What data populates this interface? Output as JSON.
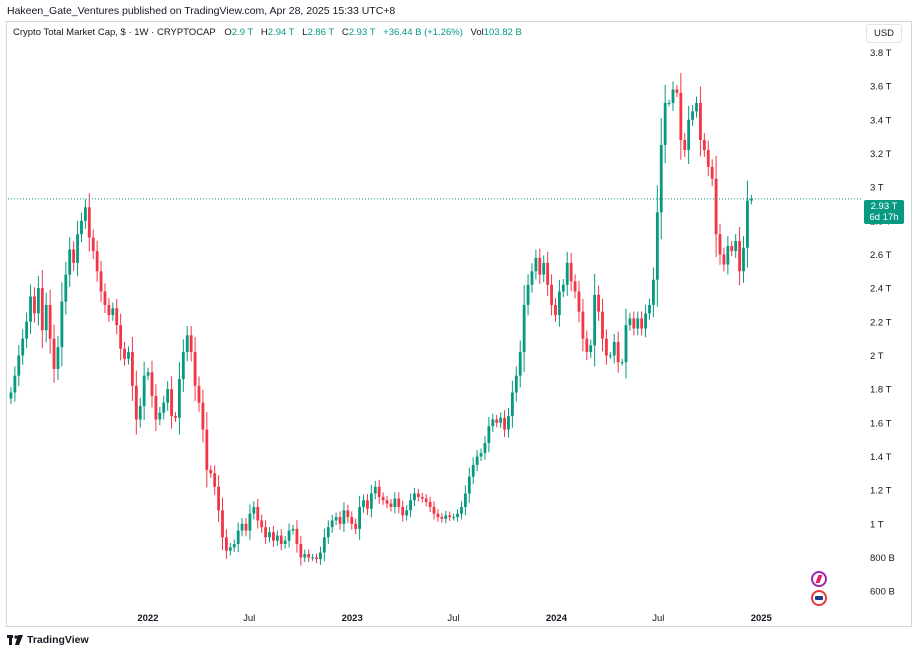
{
  "header": {
    "published_line": "Hakeen_Gate_Ventures published on TradingView.com, Apr 28, 2025 15:33 UTC+8"
  },
  "legend": {
    "symbol": "Crypto Total Market Cap, $ · 1W · CRYPTOCAP",
    "o_label": "O",
    "o_value": "2.9 T",
    "h_label": "H",
    "h_value": "2.94 T",
    "l_label": "L",
    "l_value": "2.86 T",
    "c_label": "C",
    "c_value": "2.93 T",
    "change": "+36.44 B (+1.26%)",
    "vol_label": "Vol",
    "vol_value": "103.82 B"
  },
  "currency_button": "USD",
  "price_tag": {
    "price": "2.93 T",
    "countdown": "6d 17h"
  },
  "footer": {
    "brand": "TradingView"
  },
  "icons": [
    "tradingview-logo-icon",
    "lightning-icon",
    "us-flag-icon"
  ],
  "colors": {
    "up": "#089981",
    "down": "#f23645",
    "accent": "#089981"
  },
  "chart_data": {
    "type": "candlestick",
    "title": "Crypto Total Market Cap, $",
    "interval": "1W",
    "y_unit": "T (trillion USD)",
    "ylim": [
      0.5,
      3.85
    ],
    "y_ticks": [
      {
        "v": 3.8,
        "label": "3.8 T"
      },
      {
        "v": 3.6,
        "label": "3.6 T"
      },
      {
        "v": 3.4,
        "label": "3.4 T"
      },
      {
        "v": 3.2,
        "label": "3.2 T"
      },
      {
        "v": 3.0,
        "label": "3 T"
      },
      {
        "v": 2.8,
        "label": "2.8 T"
      },
      {
        "v": 2.6,
        "label": "2.6 T"
      },
      {
        "v": 2.4,
        "label": "2.4 T"
      },
      {
        "v": 2.2,
        "label": "2.2 T"
      },
      {
        "v": 2.0,
        "label": "2 T"
      },
      {
        "v": 1.8,
        "label": "1.8 T"
      },
      {
        "v": 1.6,
        "label": "1.6 T"
      },
      {
        "v": 1.4,
        "label": "1.4 T"
      },
      {
        "v": 1.2,
        "label": "1.2 T"
      },
      {
        "v": 1.0,
        "label": "1 T"
      },
      {
        "v": 0.8,
        "label": "800 B"
      },
      {
        "v": 0.6,
        "label": "600 B"
      }
    ],
    "x_ticks": [
      {
        "t": "2022-01-01",
        "label": "2022",
        "bold": true
      },
      {
        "t": "2022-07-01",
        "label": "Jul",
        "bold": false
      },
      {
        "t": "2023-01-01",
        "label": "2023",
        "bold": true
      },
      {
        "t": "2023-07-01",
        "label": "Jul",
        "bold": false
      },
      {
        "t": "2024-01-01",
        "label": "2024",
        "bold": true
      },
      {
        "t": "2024-07-01",
        "label": "Jul",
        "bold": false
      },
      {
        "t": "2025-01-01",
        "label": "2025",
        "bold": true
      }
    ],
    "x_range": [
      "2021-04-26",
      "2025-06-30"
    ],
    "last_close": 2.93,
    "series": [
      {
        "name": "Crypto Total Market Cap",
        "closes": [
          1.78,
          1.88,
          2.0,
          2.1,
          2.2,
          2.35,
          2.25,
          2.4,
          2.15,
          2.3,
          2.1,
          1.92,
          2.05,
          2.32,
          2.48,
          2.63,
          2.55,
          2.72,
          2.8,
          2.88,
          2.7,
          2.62,
          2.5,
          2.38,
          2.3,
          2.24,
          2.28,
          2.18,
          2.04,
          1.98,
          2.02,
          1.82,
          1.62,
          1.7,
          1.88,
          1.9,
          1.76,
          1.62,
          1.66,
          1.72,
          1.8,
          1.64,
          1.63,
          1.86,
          2.02,
          2.12,
          2.02,
          1.82,
          1.72,
          1.56,
          1.32,
          1.3,
          1.22,
          1.08,
          0.92,
          0.84,
          0.86,
          0.88,
          0.96,
          1.0,
          0.96,
          1.06,
          1.1,
          1.02,
          0.98,
          0.92,
          0.95,
          0.9,
          0.93,
          0.88,
          0.9,
          0.96,
          0.97,
          0.88,
          0.8,
          0.82,
          0.8,
          0.8,
          0.79,
          0.83,
          0.92,
          0.98,
          1.02,
          1.04,
          1.0,
          1.08,
          1.04,
          1.0,
          0.97,
          1.1,
          1.14,
          1.09,
          1.18,
          1.22,
          1.16,
          1.14,
          1.12,
          1.1,
          1.15,
          1.1,
          1.05,
          1.08,
          1.14,
          1.18,
          1.16,
          1.15,
          1.13,
          1.1,
          1.06,
          1.04,
          1.03,
          1.05,
          1.04,
          1.04,
          1.06,
          1.1,
          1.18,
          1.28,
          1.35,
          1.4,
          1.42,
          1.48,
          1.58,
          1.62,
          1.6,
          1.63,
          1.56,
          1.64,
          1.78,
          1.88,
          2.02,
          2.3,
          2.42,
          2.5,
          2.58,
          2.48,
          2.55,
          2.42,
          2.3,
          2.24,
          2.38,
          2.42,
          2.55,
          2.44,
          2.38,
          2.26,
          2.1,
          2.02,
          2.06,
          2.36,
          2.26,
          2.1,
          2.0,
          2.0,
          2.08,
          1.96,
          1.96,
          2.18,
          2.22,
          2.16,
          2.22,
          2.16,
          2.25,
          2.3,
          2.45,
          2.85,
          3.25,
          3.5,
          3.5,
          3.58,
          3.56,
          3.28,
          3.22,
          3.4,
          3.45,
          3.5,
          3.28,
          3.22,
          3.12,
          3.05,
          2.72,
          2.6,
          2.54,
          2.65,
          2.62,
          2.68,
          2.5,
          2.64,
          2.92,
          2.93
        ]
      }
    ]
  }
}
